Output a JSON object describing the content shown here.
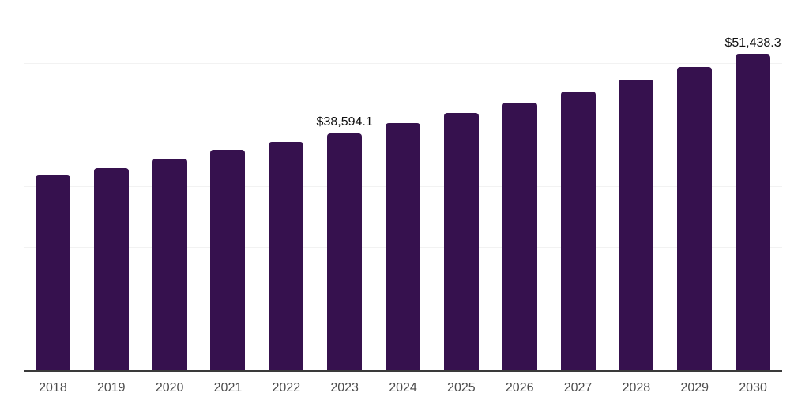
{
  "page": {
    "background": "#ffffff"
  },
  "chart_data": {
    "type": "bar",
    "title": "",
    "xlabel": "",
    "ylabel": "",
    "categories": [
      "2018",
      "2019",
      "2020",
      "2021",
      "2022",
      "2023",
      "2024",
      "2025",
      "2026",
      "2027",
      "2028",
      "2029",
      "2030"
    ],
    "values": [
      31750,
      32900,
      34450,
      35850,
      37100,
      38594.1,
      40250,
      41850,
      43550,
      45350,
      47300,
      49350,
      51438.3
    ],
    "data_labels": [
      {
        "category": "2023",
        "text": "$38,594.1"
      },
      {
        "category": "2030",
        "text": "$51,438.3"
      }
    ],
    "ylim": [
      0,
      60000
    ],
    "gridline_step": 10000,
    "grid": true,
    "legend": false,
    "y_axis_labels_visible": false,
    "bar_color": "#36114e",
    "axis_line_color": "#3a3a3a",
    "gridline_color": "#f2f2f2",
    "tick_label_color": "#4d4d4d",
    "value_label_color": "#111111",
    "background_color": "#ffffff"
  }
}
